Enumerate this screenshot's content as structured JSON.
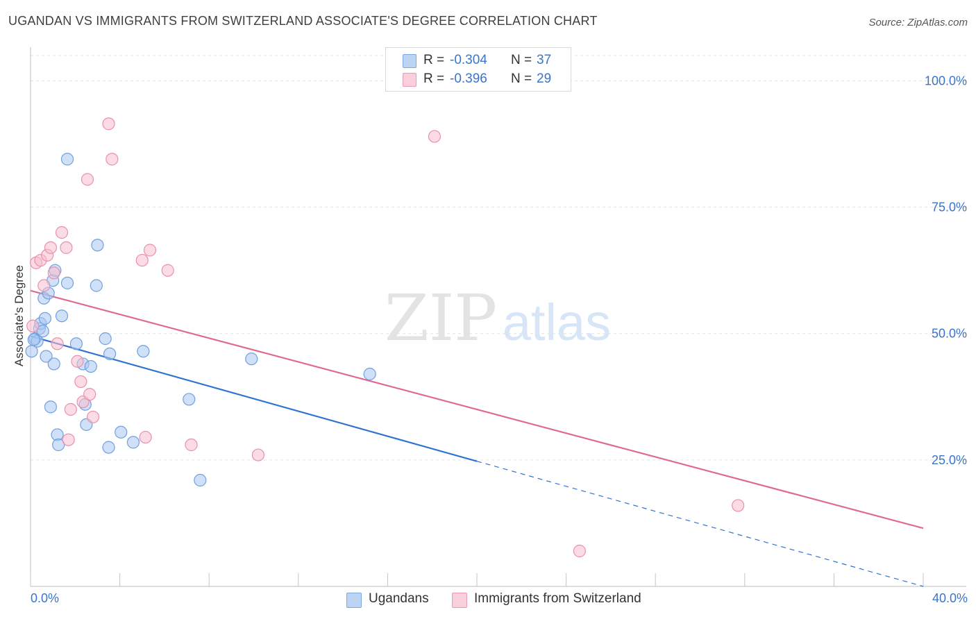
{
  "title": "UGANDAN VS IMMIGRANTS FROM SWITZERLAND ASSOCIATE'S DEGREE CORRELATION CHART",
  "source": "Source: ZipAtlas.com",
  "watermark": {
    "zip": "ZIP",
    "atlas": "atlas"
  },
  "legend_top": {
    "rows": [
      {
        "r_label": "R =",
        "r_value": "-0.304",
        "n_label": "N =",
        "n_value": "37"
      },
      {
        "r_label": "R =",
        "r_value": "-0.396",
        "n_label": "N =",
        "n_value": "29"
      }
    ]
  },
  "legend_bottom": [
    "Ugandans",
    "Immigrants from Switzerland"
  ],
  "colors": {
    "blue_fill": "#a9c8f0",
    "blue_stroke": "#6f9fe0",
    "blue_line": "#2f73d0",
    "pink_fill": "#f7bfcf",
    "pink_stroke": "#ea8fab",
    "pink_line": "#e06990",
    "tick_text": "#3a74c9",
    "grid": "#e2e2e2"
  },
  "chart_data": {
    "type": "scatter",
    "title": "UGANDAN VS IMMIGRANTS FROM SWITZERLAND ASSOCIATE'S DEGREE CORRELATION CHART",
    "xlabel": "",
    "ylabel": "Associate's Degree",
    "xlim": [
      0,
      40
    ],
    "ylim": [
      0,
      105
    ],
    "x_tick_labels": [
      "0.0%",
      "40.0%"
    ],
    "y_ticks": [
      25,
      50,
      75,
      100
    ],
    "y_tick_labels": [
      "25.0%",
      "50.0%",
      "75.0%",
      "100.0%"
    ],
    "grid": true,
    "legend_position": "top-center",
    "series": [
      {
        "name": "Ugandans",
        "color": "#a9c8f0",
        "r": -0.304,
        "n": 37,
        "points": [
          [
            0.05,
            46.5
          ],
          [
            0.2,
            49.0
          ],
          [
            0.3,
            48.5
          ],
          [
            0.4,
            51.0
          ],
          [
            0.45,
            52.0
          ],
          [
            0.55,
            50.5
          ],
          [
            0.6,
            57.0
          ],
          [
            0.65,
            53.0
          ],
          [
            0.7,
            45.5
          ],
          [
            0.8,
            58.0
          ],
          [
            0.9,
            35.5
          ],
          [
            1.0,
            60.5
          ],
          [
            1.05,
            44.0
          ],
          [
            1.1,
            62.5
          ],
          [
            1.2,
            30.0
          ],
          [
            1.25,
            28.0
          ],
          [
            1.4,
            53.5
          ],
          [
            1.65,
            60.0
          ],
          [
            1.65,
            84.5
          ],
          [
            2.05,
            48.0
          ],
          [
            2.35,
            44.0
          ],
          [
            2.45,
            36.0
          ],
          [
            2.5,
            32.0
          ],
          [
            2.7,
            43.5
          ],
          [
            2.95,
            59.5
          ],
          [
            3.0,
            67.5
          ],
          [
            3.35,
            49.0
          ],
          [
            3.5,
            27.5
          ],
          [
            3.55,
            46.0
          ],
          [
            4.05,
            30.5
          ],
          [
            4.6,
            28.5
          ],
          [
            5.05,
            46.5
          ],
          [
            7.1,
            37.0
          ],
          [
            7.6,
            21.0
          ],
          [
            9.9,
            45.0
          ],
          [
            15.2,
            42.0
          ],
          [
            0.15,
            48.8
          ]
        ],
        "trend": {
          "x0": 0,
          "y0": 49.5,
          "x_solid_end": 20,
          "x1": 40,
          "y1": 0
        }
      },
      {
        "name": "Immigrants from Switzerland",
        "color": "#f7bfcf",
        "r": -0.396,
        "n": 29,
        "points": [
          [
            0.1,
            51.5
          ],
          [
            0.25,
            64.0
          ],
          [
            0.45,
            64.5
          ],
          [
            0.6,
            59.5
          ],
          [
            0.75,
            65.5
          ],
          [
            0.9,
            67.0
          ],
          [
            1.05,
            62.0
          ],
          [
            1.2,
            48.0
          ],
          [
            1.4,
            70.0
          ],
          [
            1.6,
            67.0
          ],
          [
            1.7,
            29.0
          ],
          [
            1.8,
            35.0
          ],
          [
            2.1,
            44.5
          ],
          [
            2.25,
            40.5
          ],
          [
            2.35,
            36.5
          ],
          [
            2.55,
            80.5
          ],
          [
            2.65,
            38.0
          ],
          [
            2.8,
            33.5
          ],
          [
            3.5,
            91.5
          ],
          [
            3.65,
            84.5
          ],
          [
            5.0,
            64.5
          ],
          [
            5.15,
            29.5
          ],
          [
            5.35,
            66.5
          ],
          [
            6.15,
            62.5
          ],
          [
            7.2,
            28.0
          ],
          [
            10.2,
            26.0
          ],
          [
            18.1,
            89.0
          ],
          [
            24.6,
            7.0
          ],
          [
            31.7,
            16.0
          ]
        ],
        "trend": {
          "x0": 0,
          "y0": 58.5,
          "x1": 40,
          "y1": 11.5
        }
      }
    ]
  }
}
